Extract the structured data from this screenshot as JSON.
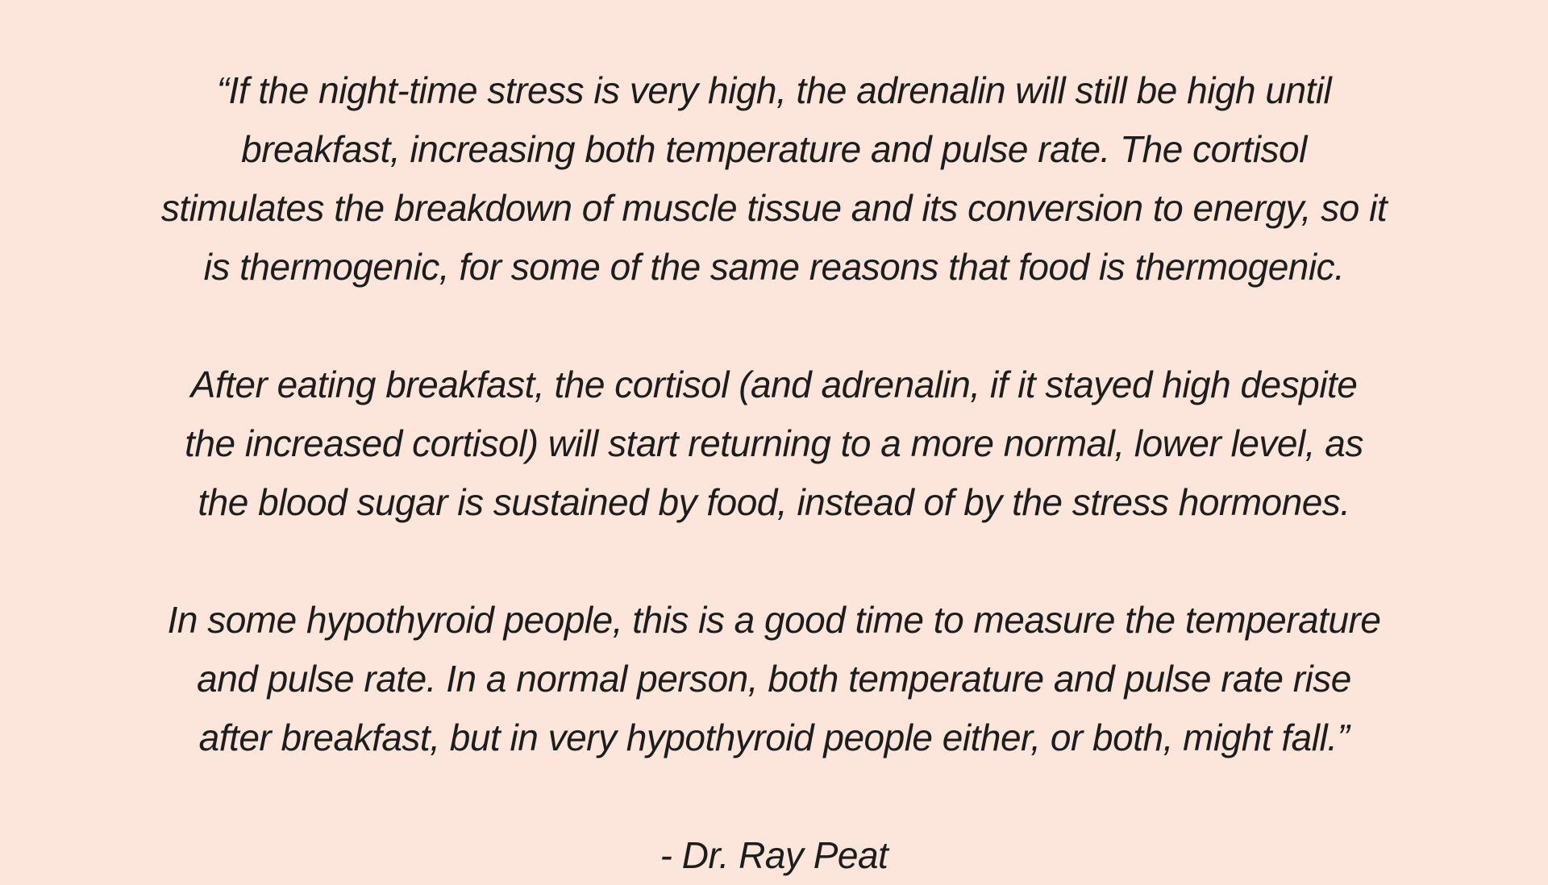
{
  "canvas": {
    "background_color": "#fce5da",
    "text_color": "#1d1d1d"
  },
  "quote": {
    "paragraphs": [
      {
        "lines": [
          "“If the night-time stress is very high, the adrenalin will still be high until",
          "breakfast, increasing both temperature and pulse rate. The cortisol",
          "stimulates the breakdown of muscle tissue and its conversion to energy, so it",
          "is thermogenic, for some of the same reasons that food is thermogenic."
        ]
      },
      {
        "lines": [
          "After eating breakfast, the cortisol (and adrenalin, if it stayed high despite",
          "the increased cortisol) will start returning to a more normal, lower level, as",
          "the blood sugar is sustained by food, instead of by the stress hormones."
        ]
      },
      {
        "lines": [
          "In some hypothyroid people, this is a good time to measure the temperature",
          "and pulse rate. In a normal person, both temperature and pulse rate rise",
          "after breakfast, but in very hypothyroid people either, or both, might fall.”"
        ]
      }
    ],
    "attribution": "- Dr. Ray Peat"
  }
}
